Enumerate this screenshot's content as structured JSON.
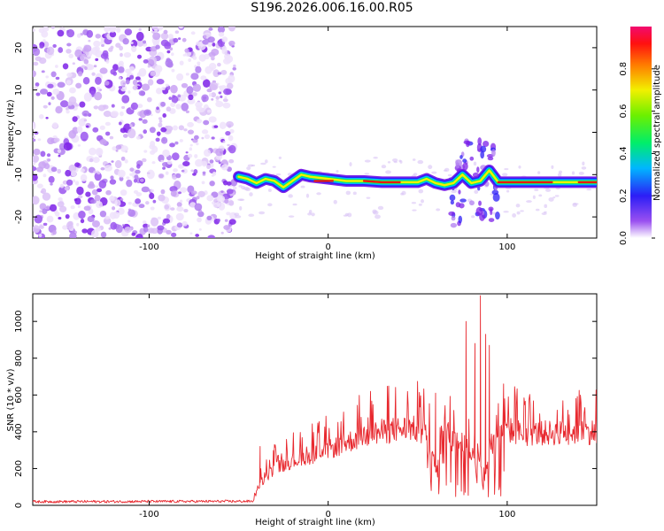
{
  "title": "S196.2026.006.16.00.R05",
  "chart_data": [
    {
      "type": "heatmap",
      "xlabel": "Height of straight line (km)",
      "ylabel": "Frequency (Hz)",
      "xlim": [
        -165,
        150
      ],
      "ylim": [
        -25,
        25
      ],
      "xticks": [
        -100,
        0,
        100
      ],
      "yticks": [
        -20,
        -10,
        0,
        10,
        20
      ],
      "noise_region_x": [
        -165,
        -52
      ],
      "signal_track": [
        {
          "x": -50,
          "y": -10.5
        },
        {
          "x": -45,
          "y": -11
        },
        {
          "x": -40,
          "y": -12
        },
        {
          "x": -35,
          "y": -11
        },
        {
          "x": -30,
          "y": -11.5
        },
        {
          "x": -25,
          "y": -13
        },
        {
          "x": -20,
          "y": -11.5
        },
        {
          "x": -15,
          "y": -10
        },
        {
          "x": -10,
          "y": -10.5
        },
        {
          "x": 0,
          "y": -11
        },
        {
          "x": 10,
          "y": -11.5
        },
        {
          "x": 20,
          "y": -11.5
        },
        {
          "x": 30,
          "y": -11.8
        },
        {
          "x": 40,
          "y": -11.8
        },
        {
          "x": 50,
          "y": -11.8
        },
        {
          "x": 55,
          "y": -11
        },
        {
          "x": 60,
          "y": -12
        },
        {
          "x": 65,
          "y": -12.5
        },
        {
          "x": 70,
          "y": -12
        },
        {
          "x": 75,
          "y": -10
        },
        {
          "x": 80,
          "y": -12
        },
        {
          "x": 85,
          "y": -11.5
        },
        {
          "x": 90,
          "y": -9
        },
        {
          "x": 95,
          "y": -11.8
        },
        {
          "x": 110,
          "y": -11.8
        },
        {
          "x": 125,
          "y": -11.8
        },
        {
          "x": 140,
          "y": -11.8
        },
        {
          "x": 150,
          "y": -11.8
        }
      ],
      "colorbar": {
        "label": "Normalized spectral amplitude",
        "range": [
          0.0,
          1.0
        ],
        "ticks": [
          "0.0",
          "0.2",
          "0.4",
          "0.6",
          "0.8"
        ]
      }
    },
    {
      "type": "line",
      "xlabel": "Height of straight line (km)",
      "ylabel": "SNR (10 * v/v)",
      "xlim": [
        -165,
        150
      ],
      "ylim": [
        0,
        1150
      ],
      "xticks": [
        -100,
        0,
        100
      ],
      "yticks": [
        0,
        200,
        400,
        600,
        800,
        1000
      ],
      "series": [
        {
          "name": "SNR",
          "color": "#e8292f",
          "envelope": [
            {
              "x": -165,
              "base": 20
            },
            {
              "x": -42,
              "base": 22
            },
            {
              "x": -38,
              "base": 120
            },
            {
              "x": -30,
              "base": 200
            },
            {
              "x": -20,
              "base": 240
            },
            {
              "x": -10,
              "base": 270
            },
            {
              "x": 0,
              "base": 300
            },
            {
              "x": 10,
              "base": 340
            },
            {
              "x": 20,
              "base": 380
            },
            {
              "x": 30,
              "base": 400
            },
            {
              "x": 45,
              "base": 420
            },
            {
              "x": 55,
              "base": 400
            },
            {
              "x": 60,
              "base": 200
            },
            {
              "x": 65,
              "base": 420
            },
            {
              "x": 70,
              "base": 380
            },
            {
              "x": 80,
              "base": 300
            },
            {
              "x": 88,
              "base": 200
            },
            {
              "x": 95,
              "base": 420
            },
            {
              "x": 110,
              "base": 390
            },
            {
              "x": 130,
              "base": 395
            },
            {
              "x": 150,
              "base": 400
            }
          ],
          "peaks": [
            {
              "x": -38,
              "y": 320
            },
            {
              "x": -30,
              "y": 330
            },
            {
              "x": 60,
              "y": 610
            },
            {
              "x": 77,
              "y": 1000
            },
            {
              "x": 82,
              "y": 880
            },
            {
              "x": 85,
              "y": 1140
            },
            {
              "x": 88,
              "y": 930
            },
            {
              "x": 90,
              "y": 870
            },
            {
              "x": 98,
              "y": 660
            }
          ]
        }
      ]
    }
  ]
}
